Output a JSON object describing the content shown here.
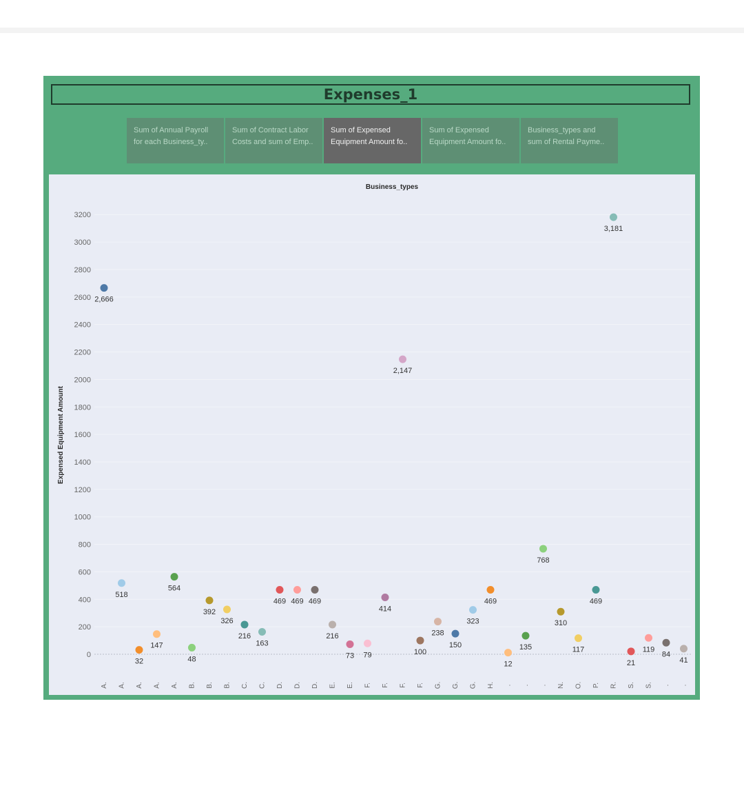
{
  "dashboard": {
    "title": "Expenses_1",
    "tabs": [
      {
        "line1": "Sum of Annual Payroll",
        "line2": "for each Business_ty..",
        "active": false
      },
      {
        "line1": "Sum of Contract Labor",
        "line2": "Costs and sum of Emp..",
        "active": false
      },
      {
        "line1": "Sum of Expensed",
        "line2": "Equipment Amount fo..",
        "active": true
      },
      {
        "line1": "Sum of Expensed",
        "line2": "Equipment Amount fo..",
        "active": false
      },
      {
        "line1": "Business_types and",
        "line2": "sum of Rental Payme..",
        "active": false
      }
    ]
  },
  "chart_data": {
    "type": "scatter",
    "title": "Business_types",
    "xlabel": "Business_types",
    "ylabel": "Expensed Equipment Amount",
    "ylim": [
      -80,
      3300
    ],
    "yticks": [
      0,
      200,
      400,
      600,
      800,
      1000,
      1200,
      1400,
      1600,
      1800,
      2000,
      2200,
      2400,
      2600,
      2800,
      3000,
      3200
    ],
    "grid": true,
    "points": [
      {
        "x": "A.",
        "y": 2666,
        "label": "2,666",
        "color": "#4e79a7"
      },
      {
        "x": "A.",
        "y": 518,
        "label": "518",
        "color": "#a0cbe8"
      },
      {
        "x": "A.",
        "y": 32,
        "label": "32",
        "color": "#f28e2b"
      },
      {
        "x": "A.",
        "y": 147,
        "label": "147",
        "color": "#ffbe7d"
      },
      {
        "x": "A.",
        "y": 564,
        "label": "564",
        "color": "#59a14f"
      },
      {
        "x": "B.",
        "y": 48,
        "label": "48",
        "color": "#8cd17d"
      },
      {
        "x": "B.",
        "y": 392,
        "label": "392",
        "color": "#b6992d"
      },
      {
        "x": "B.",
        "y": 326,
        "label": "326",
        "color": "#f1ce63"
      },
      {
        "x": "C.",
        "y": 216,
        "label": "216",
        "color": "#499894"
      },
      {
        "x": "C.",
        "y": 163,
        "label": "163",
        "color": "#86bcb6"
      },
      {
        "x": "D.",
        "y": 469,
        "label": "469",
        "color": "#e15759"
      },
      {
        "x": "D.",
        "y": 469,
        "label": "469",
        "color": "#ff9d9a"
      },
      {
        "x": "D.",
        "y": 469,
        "label": "469",
        "color": "#79706e"
      },
      {
        "x": "E.",
        "y": 216,
        "label": "216",
        "color": "#bab0ac"
      },
      {
        "x": "E.",
        "y": 73,
        "label": "73",
        "color": "#d37295"
      },
      {
        "x": "F.",
        "y": 79,
        "label": "79",
        "color": "#fabfd2"
      },
      {
        "x": "F.",
        "y": 414,
        "label": "414",
        "color": "#b07aa1"
      },
      {
        "x": "F.",
        "y": 2147,
        "label": "2,147",
        "color": "#d4a6c8"
      },
      {
        "x": "F.",
        "y": 100,
        "label": "100",
        "color": "#9d7660"
      },
      {
        "x": "G.",
        "y": 238,
        "label": "238",
        "color": "#d7b5a6"
      },
      {
        "x": "G.",
        "y": 150,
        "label": "150",
        "color": "#4e79a7"
      },
      {
        "x": "G.",
        "y": 323,
        "label": "323",
        "color": "#a0cbe8"
      },
      {
        "x": "H.",
        "y": 469,
        "label": "469",
        "color": "#f28e2b"
      },
      {
        "x": ".",
        "y": 12,
        "label": "12",
        "color": "#ffbe7d"
      },
      {
        "x": ".",
        "y": 135,
        "label": "135",
        "color": "#59a14f"
      },
      {
        "x": ".",
        "y": 768,
        "label": "768",
        "color": "#8cd17d"
      },
      {
        "x": "N.",
        "y": 310,
        "label": "310",
        "color": "#b6992d"
      },
      {
        "x": "O.",
        "y": 117,
        "label": "117",
        "color": "#f1ce63"
      },
      {
        "x": "P.",
        "y": 469,
        "label": "469",
        "color": "#499894"
      },
      {
        "x": "R.",
        "y": 3181,
        "label": "3,181",
        "color": "#86bcb6"
      },
      {
        "x": "S.",
        "y": 21,
        "label": "21",
        "color": "#e15759"
      },
      {
        "x": "S.",
        "y": 119,
        "label": "119",
        "color": "#ff9d9a"
      },
      {
        "x": ".",
        "y": 84,
        "label": "84",
        "color": "#79706e"
      },
      {
        "x": ".",
        "y": 41,
        "label": "41",
        "color": "#bab0ac"
      }
    ]
  }
}
